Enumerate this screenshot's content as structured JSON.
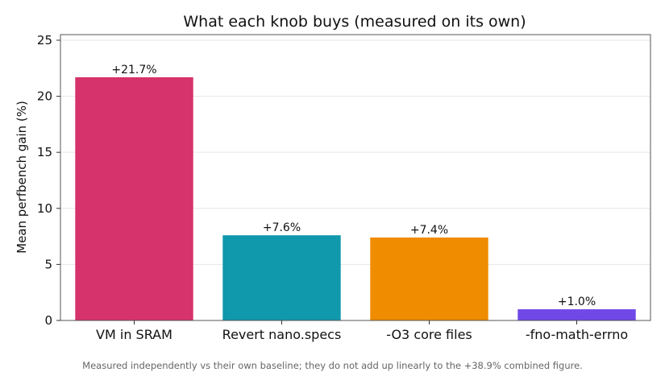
{
  "chart_data": {
    "type": "bar",
    "title": "What each knob buys (measured on its own)",
    "xlabel": "",
    "ylabel": "Mean perfbench gain (%)",
    "ylim": [
      0,
      25.5
    ],
    "yticks": [
      0,
      5,
      10,
      15,
      20,
      25
    ],
    "grid": "horizontal",
    "categories": [
      "VM in SRAM",
      "Revert nano.specs",
      "-O3 core files",
      "-fno-math-errno"
    ],
    "values": [
      21.7,
      7.6,
      7.4,
      1.0
    ],
    "data_labels": [
      "+21.7%",
      "+7.6%",
      "+7.4%",
      "+1.0%"
    ],
    "colors": [
      "#d6336c",
      "#1098ad",
      "#f08c00",
      "#7048e8"
    ]
  },
  "footnote": "Measured independently vs their own baseline; they do not add up linearly to the +38.9% combined figure."
}
